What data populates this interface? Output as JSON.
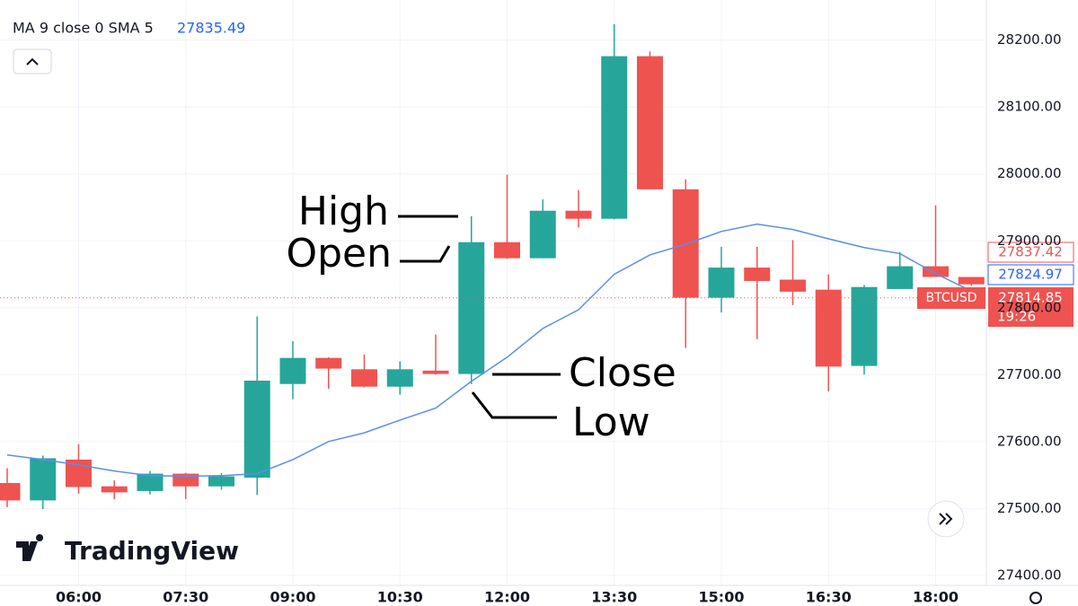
{
  "chart_data": {
    "type": "candlestick",
    "indicator_label": "MA 9 close 0 SMA 5",
    "indicator_value": 27835.49,
    "categories": [
      null,
      null,
      "06:00",
      null,
      null,
      "07:30",
      null,
      null,
      "09:00",
      null,
      null,
      "10:30",
      null,
      null,
      "12:00",
      null,
      null,
      "13:30",
      null,
      null,
      "15:00",
      null,
      null,
      "16:30",
      null,
      null,
      "18:00",
      null
    ],
    "series": [
      {
        "name": "BTCUSD",
        "up_color": "#26a69a",
        "down_color": "#ef5350",
        "open": [
          27538,
          27512,
          27573,
          27533,
          27526,
          27552,
          27533,
          27546,
          27686,
          27725,
          27708,
          27682,
          27706,
          27701,
          27898,
          27874,
          27945,
          27933,
          28176,
          27977,
          27815,
          27860,
          27842,
          27827,
          27713,
          27828,
          27862,
          27846
        ],
        "high": [
          27560,
          27579,
          27596,
          27542,
          27556,
          27553,
          27553,
          27787,
          27750,
          27726,
          27730,
          27720,
          27760,
          27937,
          27999,
          27962,
          27976,
          28224,
          28183,
          27992,
          27891,
          27891,
          27901,
          27850,
          27834,
          27883,
          27953,
          27846
        ],
        "low": [
          27502,
          27499,
          27522,
          27514,
          27521,
          27514,
          27528,
          27520,
          27663,
          27679,
          27681,
          27670,
          27700,
          27686,
          27873,
          27874,
          27920,
          27932,
          27977,
          27740,
          27793,
          27753,
          27804,
          27675,
          27700,
          27828,
          27846,
          27833
        ],
        "close": [
          27512,
          27575,
          27532,
          27524,
          27552,
          27533,
          27548,
          27691,
          27725,
          27709,
          27682,
          27708,
          27701,
          27898,
          27874,
          27945,
          27933,
          28176,
          27977,
          27815,
          27860,
          27840,
          27824,
          27712,
          27831,
          27862,
          27846,
          27835
        ]
      }
    ],
    "ma": {
      "color": "#5b8def",
      "values": [
        27580,
        27573,
        27565,
        27556,
        27549,
        27548,
        27549,
        27552,
        27573,
        27600,
        27613,
        27632,
        27650,
        27690,
        27726,
        27769,
        27797,
        27850,
        27879,
        27895,
        27914,
        27925,
        27917,
        27903,
        27890,
        27881,
        27851,
        27825
      ]
    },
    "price_tags": {
      "last": 27837.42,
      "ma": 27824.97,
      "current": 27814.85,
      "countdown": "19:26"
    },
    "annotations": [
      "High",
      "Open",
      "Close",
      "Low"
    ],
    "watermark": "TradingView",
    "ylim": [
      27381,
      28260
    ],
    "yticks": [
      {
        "value": 27400,
        "label": "27400.00"
      },
      {
        "value": 27500,
        "label": "27500.00"
      },
      {
        "value": 27600,
        "label": "27600.00"
      },
      {
        "value": 27700,
        "label": "27700.00"
      },
      {
        "value": 27800,
        "label": "27800.00"
      },
      {
        "value": 27900,
        "label": "27900.00"
      },
      {
        "value": 28000,
        "label": "28000.00"
      },
      {
        "value": 28100,
        "label": "28100.00"
      },
      {
        "value": 28200,
        "label": "28200.00"
      }
    ],
    "grid": true
  }
}
